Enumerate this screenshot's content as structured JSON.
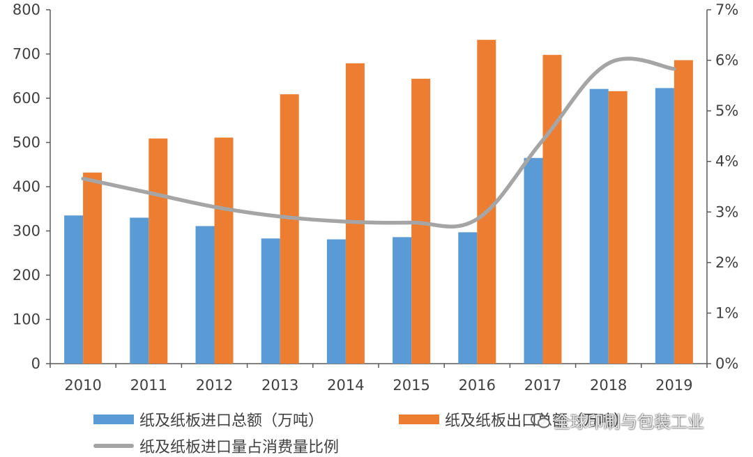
{
  "chart_data": {
    "type": "bar",
    "categories": [
      "2010",
      "2011",
      "2012",
      "2013",
      "2014",
      "2015",
      "2016",
      "2017",
      "2018",
      "2019"
    ],
    "series": [
      {
        "name": "纸及纸板进口总额（万吨）",
        "type": "bar",
        "axis": "left",
        "color": "#5B9BD5",
        "values": [
          335,
          330,
          311,
          283,
          281,
          286,
          297,
          465,
          621,
          623
        ]
      },
      {
        "name": "纸及纸板出口总额（万吨）",
        "type": "bar",
        "axis": "left",
        "color": "#ED7D31",
        "values": [
          432,
          509,
          511,
          609,
          679,
          644,
          732,
          698,
          616,
          686
        ]
      },
      {
        "name": "纸及纸板进口量占消费量比例",
        "type": "line",
        "axis": "right",
        "color": "#A5A5A5",
        "values": [
          0.0366,
          0.0338,
          0.031,
          0.0291,
          0.0281,
          0.0279,
          0.0286,
          0.0442,
          0.0594,
          0.0583
        ]
      }
    ],
    "yleft": {
      "min": 0,
      "max": 800,
      "step": 100,
      "ticks": [
        "0",
        "100",
        "200",
        "300",
        "400",
        "500",
        "600",
        "700",
        "800"
      ]
    },
    "yright": {
      "min": 0,
      "max": 0.07,
      "step": 0.01,
      "ticks": [
        "0%",
        "1%",
        "2%",
        "3%",
        "4%",
        "5%",
        "6%",
        "7%"
      ]
    },
    "legend_position": "bottom",
    "grid": false
  },
  "legend": {
    "items": [
      {
        "label": "纸及纸板进口总额（万吨）",
        "kind": "bar",
        "color": "#5B9BD5"
      },
      {
        "label": "纸及纸板出口总额（万吨）",
        "kind": "bar",
        "color": "#ED7D31"
      },
      {
        "label": "纸及纸板进口量占消费量比例",
        "kind": "line",
        "color": "#A5A5A5"
      }
    ]
  },
  "watermark": {
    "text": "全球印刷与包装工业",
    "icon": "wechat-icon"
  }
}
